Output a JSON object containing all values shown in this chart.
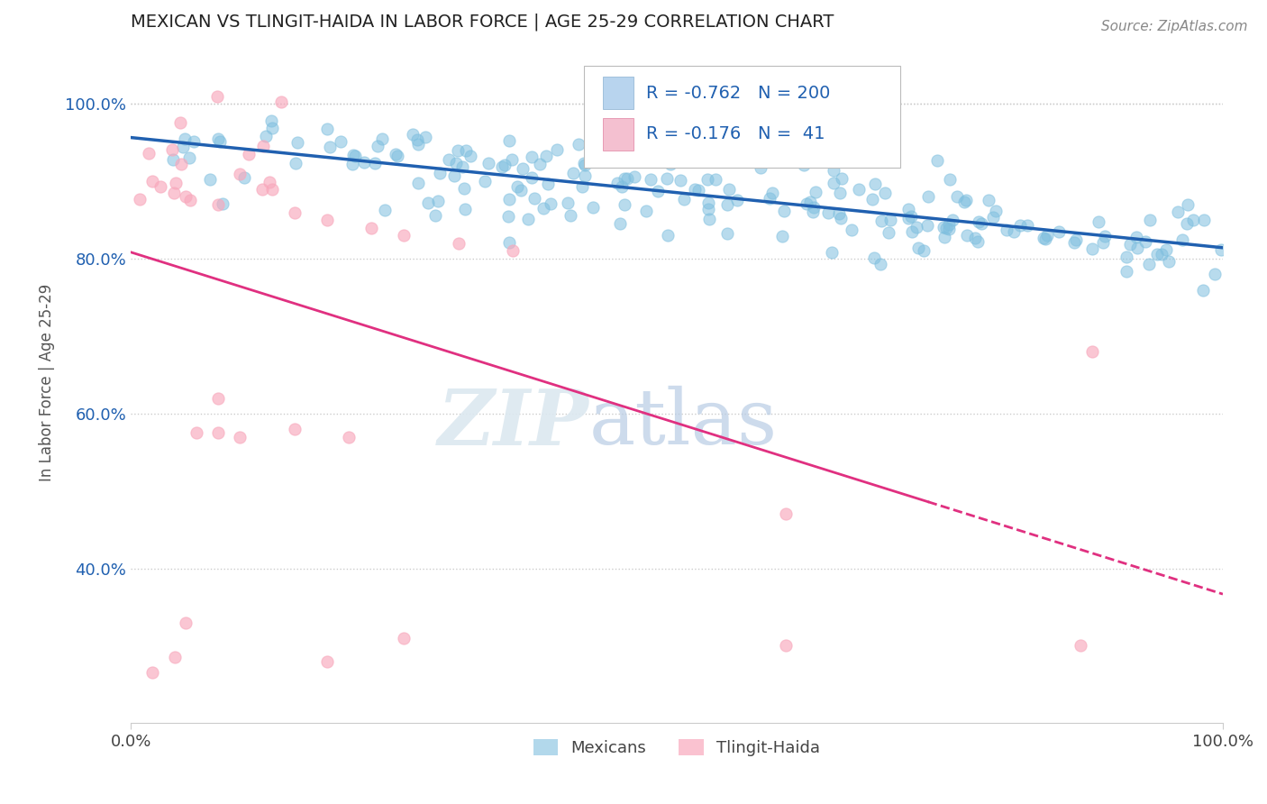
{
  "title": "MEXICAN VS TLINGIT-HAIDA IN LABOR FORCE | AGE 25-29 CORRELATION CHART",
  "source_text": "Source: ZipAtlas.com",
  "ylabel": "In Labor Force | Age 25-29",
  "xmin": 0.0,
  "xmax": 1.0,
  "ymin": 0.2,
  "ymax": 1.08,
  "xtick_labels": [
    "0.0%",
    "100.0%"
  ],
  "ytick_labels": [
    "40.0%",
    "60.0%",
    "80.0%",
    "100.0%"
  ],
  "ytick_values": [
    0.4,
    0.6,
    0.8,
    1.0
  ],
  "xtick_values": [
    0.0,
    1.0
  ],
  "mexicans_color": "#7fbfdf",
  "tlingit_color": "#f8a8bc",
  "mexicans_line_color": "#2060b0",
  "tlingit_line_color": "#e03080",
  "legend_box_mexicans": "#b8d4ee",
  "legend_box_tlingit": "#f4c0d0",
  "R_mexicans": -0.762,
  "N_mexicans": 200,
  "R_tlingit": -0.176,
  "N_tlingit": 41,
  "watermark_zip": "ZIP",
  "watermark_atlas": "atlas",
  "background_color": "#ffffff",
  "grid_color": "#cccccc",
  "title_color": "#222222",
  "axis_label_color": "#555555",
  "legend_text_color": "#2060b0",
  "tick_color": "#444444"
}
